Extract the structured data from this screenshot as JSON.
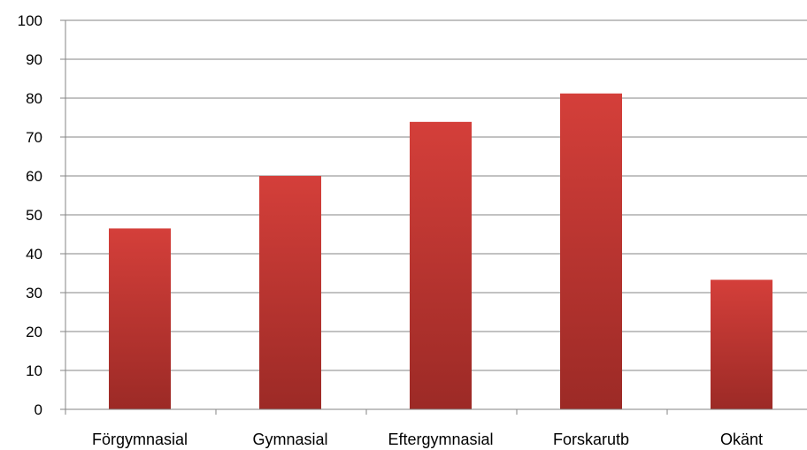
{
  "chart_data": {
    "type": "bar",
    "title": "",
    "xlabel": "",
    "ylabel": "",
    "categories": [
      "Förgymnasial",
      "Gymnasial",
      "Eftergymnasial",
      "Forskarutb",
      "Okänt"
    ],
    "values": [
      46.5,
      60,
      73.9,
      81.2,
      33.3
    ],
    "ylim": [
      0,
      100
    ],
    "yticks": [
      "0",
      "10",
      "20",
      "30",
      "40",
      "50",
      "60",
      "70",
      "80",
      "90",
      "100"
    ],
    "grid": true,
    "legend": "none",
    "bar_color_top": "#d43f3a",
    "bar_color_bottom": "#9c2a26"
  }
}
